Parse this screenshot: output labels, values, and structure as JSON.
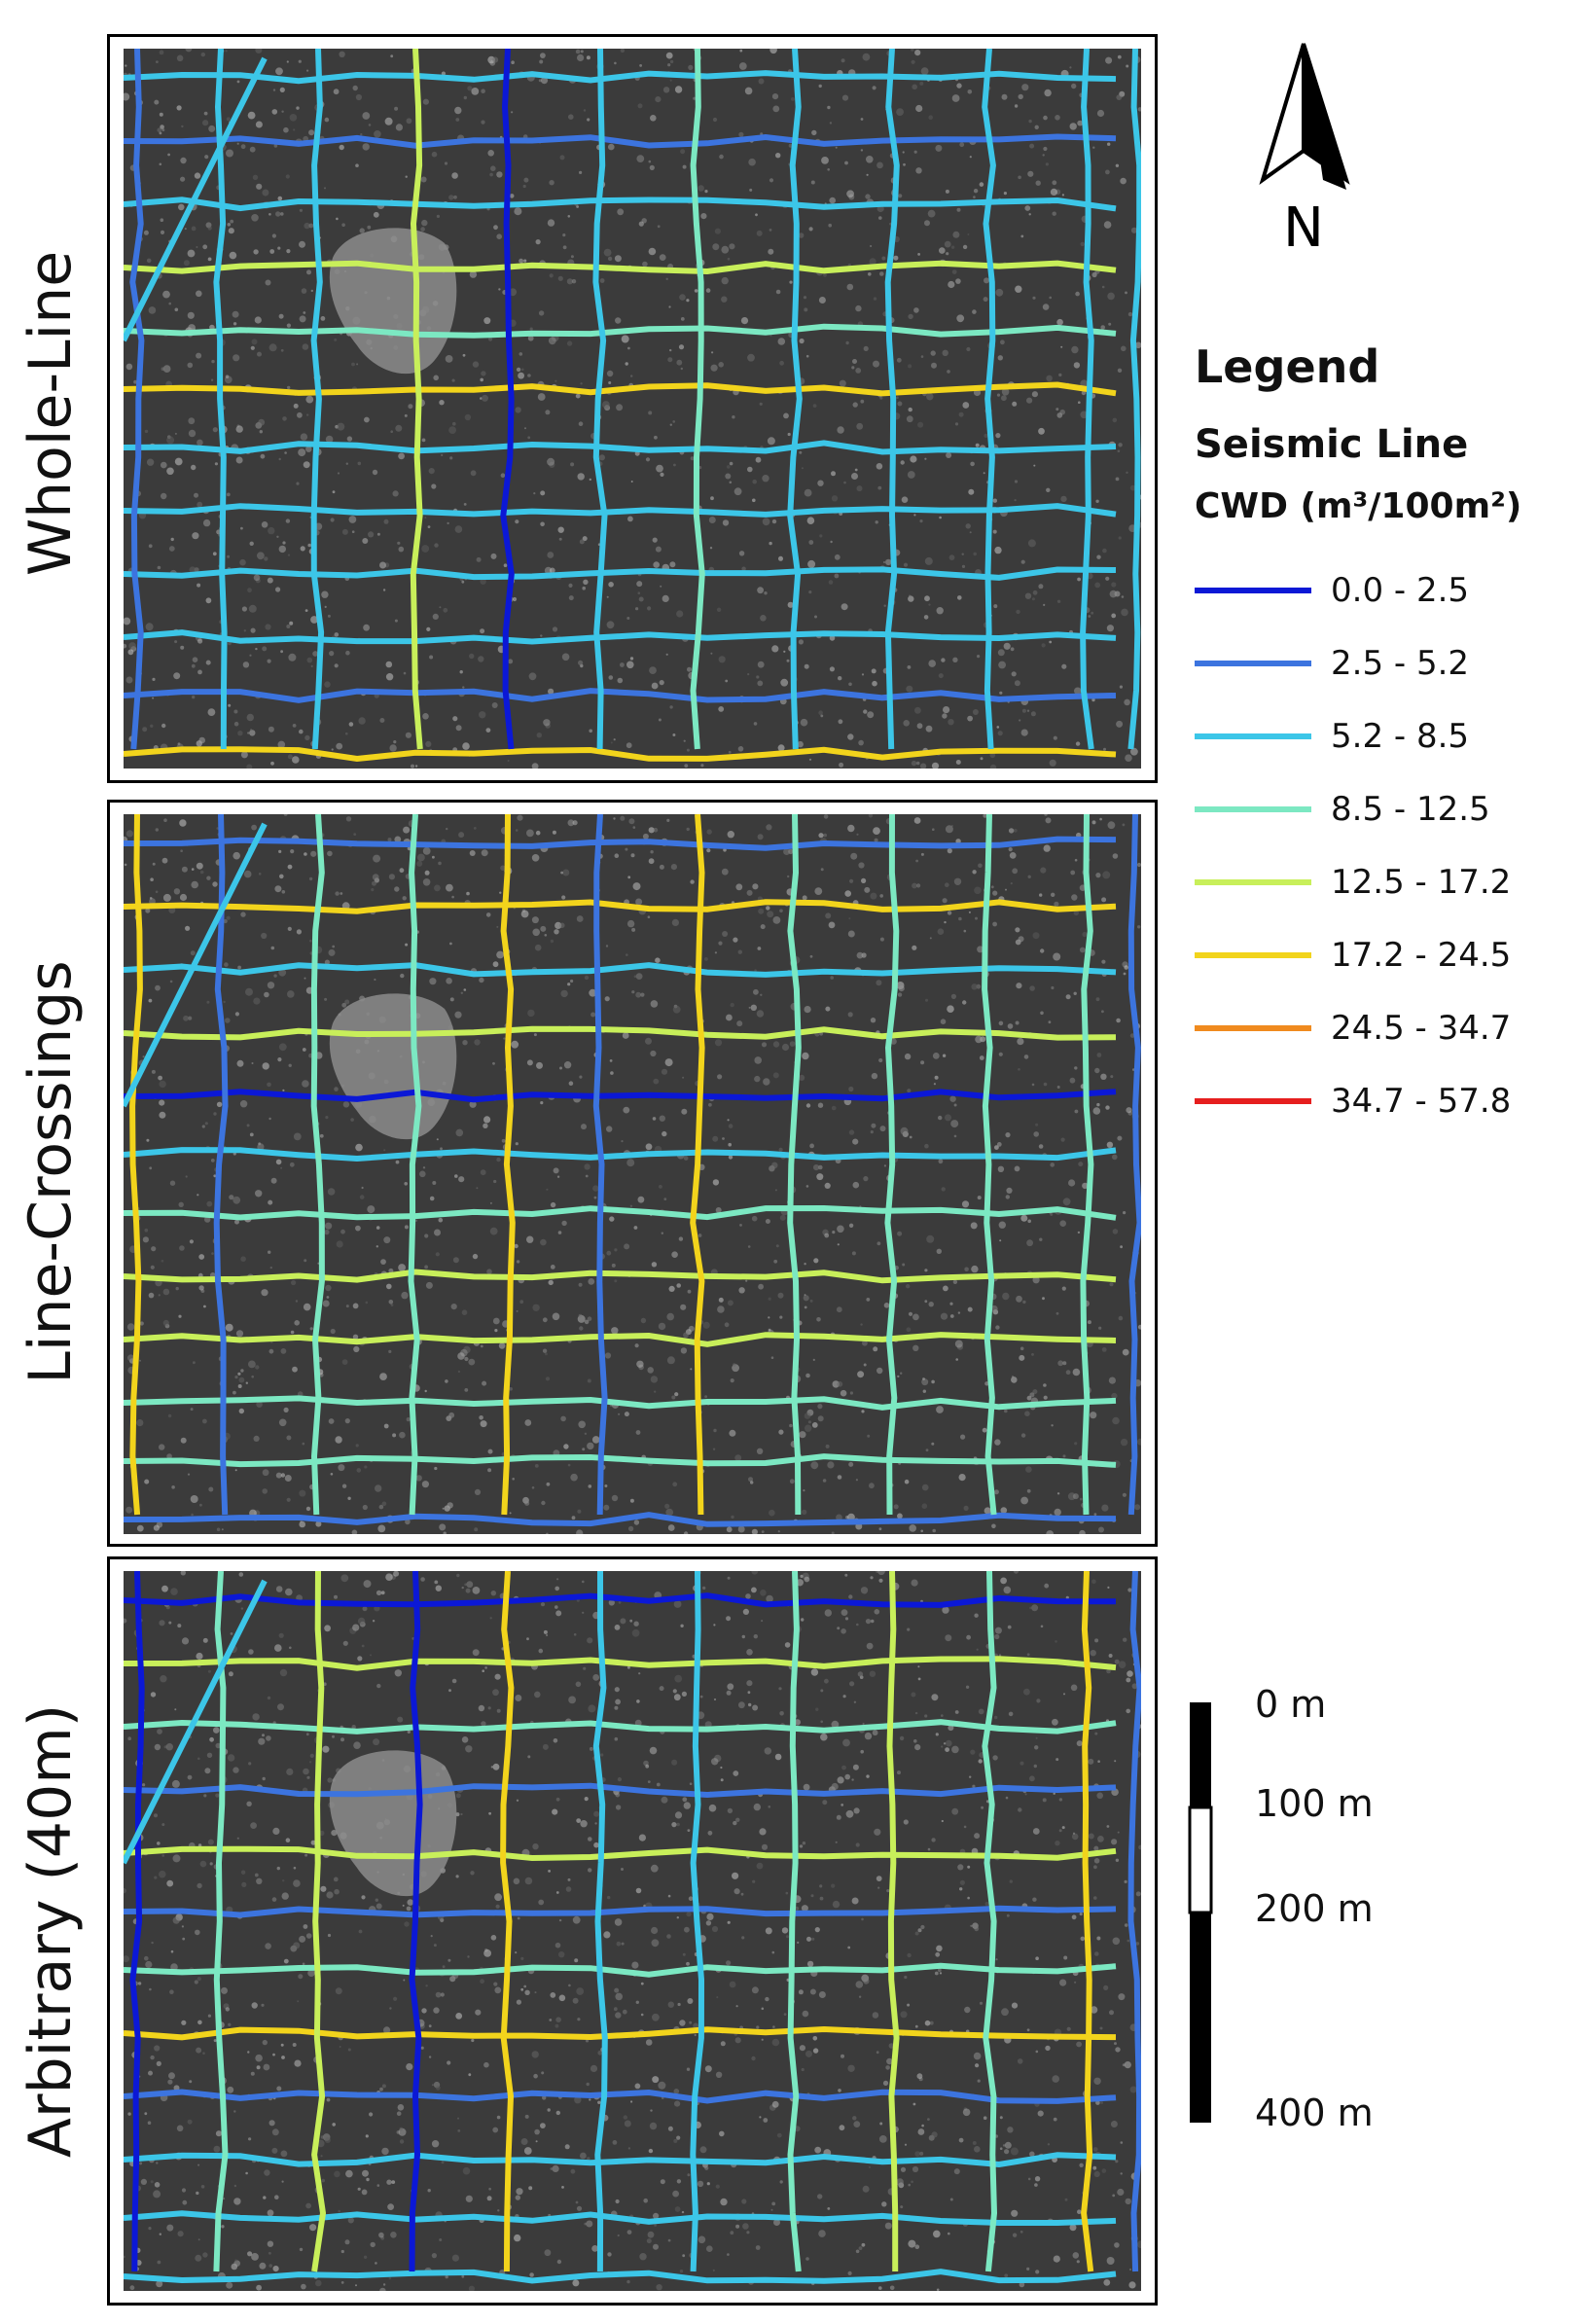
{
  "panels": [
    {
      "label": "Whole-Line"
    },
    {
      "label": "Line-Crossings"
    },
    {
      "label": "Arbitrary (40m)"
    }
  ],
  "north_arrow": {
    "label": "N"
  },
  "legend": {
    "title": "Legend",
    "subtitle": "Seismic Line",
    "unit": "CWD (m³/100m²)",
    "classes": [
      {
        "label": "0.0 - 2.5",
        "color": "#0b18d6"
      },
      {
        "label": "2.5 - 5.2",
        "color": "#3c74df"
      },
      {
        "label": "5.2 - 8.5",
        "color": "#3cc6e8"
      },
      {
        "label": "8.5 - 12.5",
        "color": "#7ce8c2"
      },
      {
        "label": "12.5 - 17.2",
        "color": "#c8ef5a"
      },
      {
        "label": "17.2 - 24.5",
        "color": "#f2d41c"
      },
      {
        "label": "24.5 - 34.7",
        "color": "#f08a1e"
      },
      {
        "label": "34.7 - 57.8",
        "color": "#e61e1e"
      }
    ]
  },
  "scale_bar": {
    "ticks": [
      "0 m",
      "100 m",
      "200 m",
      "400 m"
    ]
  }
}
